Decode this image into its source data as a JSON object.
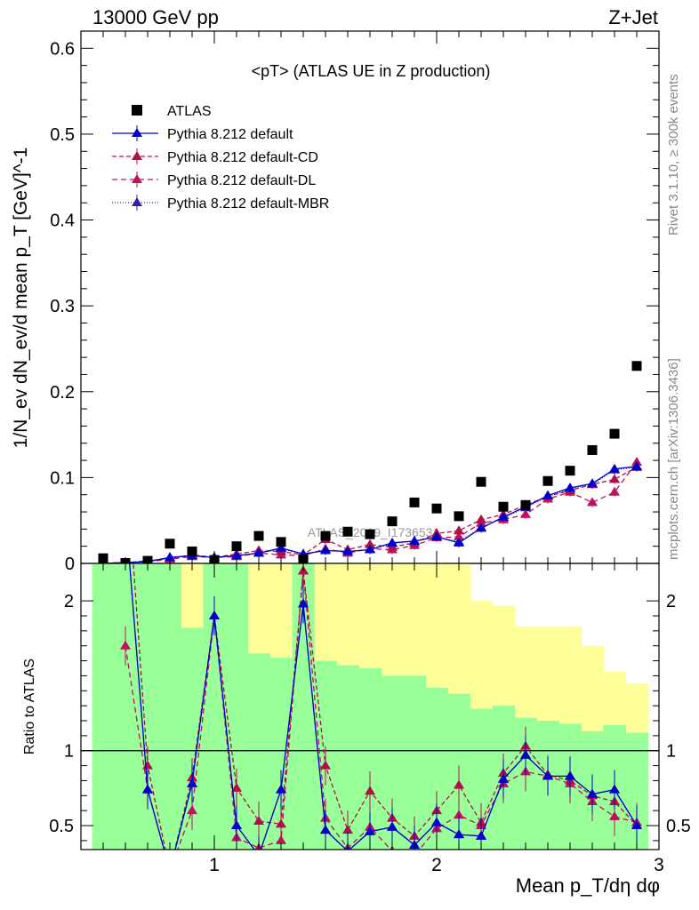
{
  "header": {
    "energy": "13000 GeV pp",
    "process": "Z+Jet"
  },
  "side_texts": {
    "rivet": "Rivet 3.1.10, ≥ 300k events",
    "mcplots": "mcplots.cern.ch [arXiv:1306.3436]"
  },
  "chart_data": [
    {
      "type": "scatter",
      "panel": "main",
      "title": "<pT> (ATLAS UE in Z production)",
      "watermark": "ATLAS_2019_I1736531",
      "ylabel": "1/N_ev dN_ev/d mean p_T [GeV]^-1",
      "xlabel": "Mean p_T/dη dφ",
      "xlim": [
        0.4,
        3.0
      ],
      "ylim": [
        0,
        0.62
      ],
      "y_ticks": [
        "0",
        "0.1",
        "0.2",
        "0.3",
        "0.4",
        "0.5",
        "0.6"
      ],
      "legend": {
        "placement": "top-left",
        "entries": [
          "ATLAS",
          "Pythia 8.212 default",
          "Pythia 8.212 default-CD",
          "Pythia 8.212 default-DL",
          "Pythia 8.212 default-MBR"
        ]
      },
      "x": [
        0.5,
        0.6,
        0.7,
        0.8,
        0.9,
        1.0,
        1.1,
        1.2,
        1.3,
        1.4,
        1.5,
        1.6,
        1.7,
        1.8,
        1.9,
        2.0,
        2.1,
        2.2,
        2.3,
        2.4,
        2.5,
        2.6,
        2.7,
        2.8,
        2.9
      ],
      "series": [
        {
          "name": "ATLAS",
          "color": "#000000",
          "marker": "square",
          "values": [
            0.006,
            0.0005,
            0.003,
            0.023,
            0.014,
            0.004,
            0.02,
            0.032,
            0.025,
            0.005,
            0.032,
            0.037,
            0.034,
            0.049,
            0.071,
            0.064,
            0.055,
            0.095,
            0.066,
            0.068,
            0.096,
            0.108,
            0.132,
            0.151,
            0.23
          ]
        },
        {
          "name": "Pythia 8.212 default",
          "color": "#0000cc",
          "dash": "",
          "marker": "triangle",
          "values": [
            0.0,
            0.001,
            0.002,
            0.007,
            0.009,
            0.007,
            0.009,
            0.012,
            0.018,
            0.011,
            0.015,
            0.014,
            0.016,
            0.024,
            0.026,
            0.031,
            0.024,
            0.041,
            0.054,
            0.066,
            0.079,
            0.088,
            0.093,
            0.11,
            0.113
          ]
        },
        {
          "name": "Pythia 8.212 default-CD",
          "color": "#b0104a",
          "dash": "5,3",
          "marker": "triangle",
          "values": [
            0.0,
            0.001,
            0.003,
            0.006,
            0.01,
            0.007,
            0.011,
            0.015,
            0.014,
            0.01,
            0.028,
            0.016,
            0.022,
            0.019,
            0.024,
            0.035,
            0.038,
            0.051,
            0.057,
            0.068,
            0.078,
            0.085,
            0.092,
            0.098,
            0.112
          ]
        },
        {
          "name": "Pythia 8.212 default-DL",
          "color": "#c01060",
          "dash": "6,4",
          "marker": "triangle",
          "values": [
            0.0,
            0.001,
            0.002,
            0.005,
            0.008,
            0.007,
            0.008,
            0.012,
            0.01,
            0.009,
            0.017,
            0.012,
            0.017,
            0.016,
            0.021,
            0.03,
            0.031,
            0.047,
            0.051,
            0.057,
            0.075,
            0.083,
            0.071,
            0.083,
            0.118
          ]
        },
        {
          "name": "Pythia 8.212 default-MBR",
          "color": "#3020b0",
          "dash": "1,2",
          "marker": "triangle",
          "values": [
            0.0,
            0.001,
            0.002,
            0.007,
            0.009,
            0.007,
            0.009,
            0.012,
            0.017,
            0.011,
            0.015,
            0.014,
            0.016,
            0.023,
            0.026,
            0.031,
            0.025,
            0.042,
            0.053,
            0.065,
            0.078,
            0.087,
            0.092,
            0.109,
            0.112
          ]
        }
      ]
    },
    {
      "type": "line",
      "panel": "ratio",
      "ylabel": "Ratio to ATLAS",
      "xlabel": "Mean p_T/dη dφ",
      "xlim": [
        0.4,
        3.0
      ],
      "ylim": [
        0.34,
        2.25
      ],
      "y_ticks": [
        "0.5",
        "1",
        "2"
      ],
      "x_ticks": [
        "1",
        "2",
        "3"
      ],
      "band_x_edges": [
        0.45,
        0.55,
        0.65,
        0.75,
        0.85,
        0.95,
        1.05,
        1.15,
        1.25,
        1.35,
        1.45,
        1.55,
        1.65,
        1.75,
        1.85,
        1.95,
        2.05,
        2.15,
        2.25,
        2.35,
        2.45,
        2.55,
        2.65,
        2.75,
        2.85,
        2.95
      ],
      "band_green_lo": [
        0.34,
        0.34,
        0.34,
        0.34,
        0.34,
        0.34,
        0.34,
        0.34,
        0.34,
        0.34,
        0.34,
        0.34,
        0.34,
        0.34,
        0.34,
        0.34,
        0.34,
        0.34,
        0.34,
        0.34,
        0.34,
        0.34,
        0.34,
        0.34,
        0.34
      ],
      "band_green_hi": [
        2.25,
        2.25,
        2.25,
        2.25,
        1.82,
        2.25,
        2.25,
        1.65,
        1.62,
        2.25,
        1.6,
        1.57,
        1.55,
        1.5,
        1.5,
        1.42,
        1.38,
        1.28,
        1.3,
        1.22,
        1.2,
        1.18,
        1.13,
        1.17,
        1.12
      ],
      "band_yellow_lo": [
        0.34,
        0.34,
        0.34,
        0.34,
        0.34,
        0.34,
        0.34,
        0.34,
        0.34,
        0.34,
        0.34,
        0.34,
        0.34,
        0.34,
        0.45,
        0.47,
        0.52,
        0.62,
        0.38,
        0.38,
        0.52,
        0.58,
        0.5,
        0.45,
        0.4
      ],
      "band_yellow_hi": [
        2.25,
        2.25,
        2.25,
        2.25,
        2.25,
        2.25,
        2.25,
        2.25,
        2.25,
        2.25,
        2.25,
        2.25,
        2.25,
        2.25,
        2.25,
        2.25,
        2.25,
        2.0,
        1.97,
        1.83,
        1.83,
        1.83,
        1.7,
        1.53,
        1.45
      ],
      "series": [
        {
          "name": "Pythia 8.212 default",
          "color": "#0000cc",
          "dash": "",
          "values": [
            null,
            2.6,
            0.74,
            0.2,
            0.78,
            1.9,
            0.5,
            0.3,
            0.74,
            1.98,
            0.47,
            0.33,
            0.46,
            0.49,
            0.37,
            0.52,
            0.44,
            0.43,
            0.81,
            0.97,
            0.83,
            0.83,
            0.71,
            0.74,
            0.5
          ]
        },
        {
          "name": "Pythia 8.212 default-CD",
          "color": "#b0104a",
          "dash": "5,3",
          "values": [
            null,
            3.0,
            0.9,
            0.2,
            0.82,
            1.9,
            0.75,
            0.53,
            0.51,
            2.2,
            0.9,
            0.47,
            0.73,
            0.55,
            0.43,
            0.6,
            0.77,
            0.52,
            0.85,
            1.03,
            0.84,
            0.8,
            0.7,
            0.66,
            0.5
          ]
        },
        {
          "name": "Pythia 8.212 default-DL",
          "color": "#c01060",
          "dash": "6,4",
          "values": [
            null,
            1.7,
            0.74,
            0.2,
            0.6,
            1.9,
            0.42,
            0.35,
            0.4,
            2.2,
            0.55,
            0.35,
            0.49,
            0.33,
            0.3,
            0.48,
            0.57,
            0.5,
            0.78,
            0.86,
            0.83,
            0.78,
            0.66,
            0.56,
            0.52
          ]
        },
        {
          "name": "Pythia 8.212 default-MBR",
          "color": "#3020b0",
          "dash": "1,2",
          "values": [
            null,
            2.6,
            0.74,
            0.2,
            0.78,
            1.9,
            0.5,
            0.3,
            0.74,
            1.98,
            0.47,
            0.33,
            0.46,
            0.49,
            0.37,
            0.52,
            0.44,
            0.43,
            0.81,
            0.97,
            0.83,
            0.83,
            0.71,
            0.74,
            0.5
          ]
        }
      ]
    }
  ]
}
